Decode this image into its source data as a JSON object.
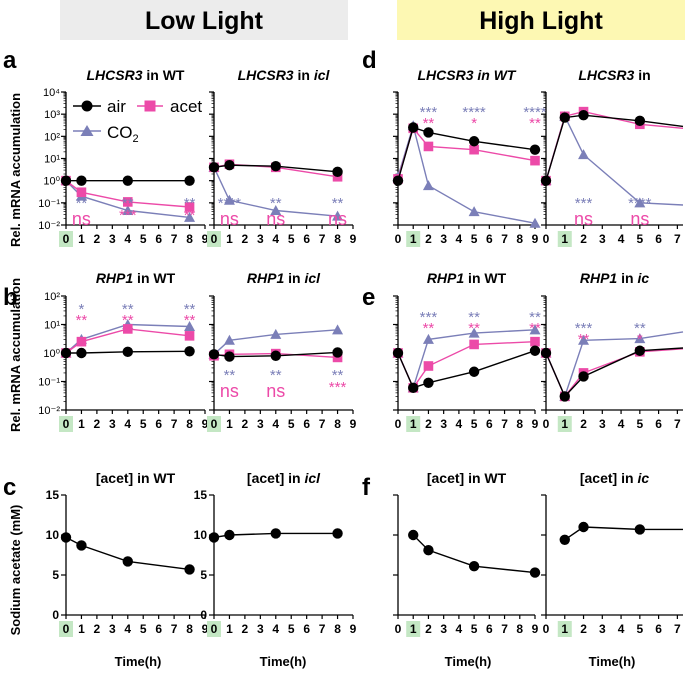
{
  "headers": {
    "low": "Low Light",
    "high": "High Light"
  },
  "colors": {
    "air": "#000000",
    "acet": "#ec4aa8",
    "co2": "#7b7fb8",
    "low_banner": "#ececec",
    "high_banner": "#fdf8b3",
    "highlight": "#c4e7c4"
  },
  "panel_letters": [
    "a",
    "b",
    "c",
    "d",
    "e",
    "f"
  ],
  "ylabels": {
    "mrna": "Rel. mRNA accumulation",
    "acet": "Sodium acetate (mM)"
  },
  "xlabel": "Time(h)",
  "legend": {
    "air": "air",
    "acet": "acet",
    "co2_main": "CO",
    "co2_sub": "2"
  },
  "chart_data": [
    {
      "id": "a1",
      "type": "line",
      "title_gene": "LHCSR3",
      "title_rest": " in WT",
      "yscale": "log",
      "ylim": [
        0.01,
        10000
      ],
      "ytick_labels": [
        "10⁻²",
        "10⁻¹",
        "10⁰",
        "10¹",
        "10²",
        "10³",
        "10⁴"
      ],
      "xlim": [
        0,
        9
      ],
      "xticks": [
        0,
        1,
        2,
        3,
        4,
        5,
        6,
        7,
        8,
        9
      ],
      "highlight_x": 0,
      "series": [
        {
          "name": "air",
          "x": [
            0,
            1,
            4,
            8
          ],
          "y": [
            1.0,
            1.0,
            1.0,
            1.0
          ]
        },
        {
          "name": "acet",
          "x": [
            0,
            1,
            4,
            8
          ],
          "y": [
            1.0,
            0.3,
            0.11,
            0.065
          ]
        },
        {
          "name": "CO2",
          "x": [
            0,
            1,
            4,
            8
          ],
          "y": [
            1.0,
            0.2,
            0.045,
            0.022
          ]
        }
      ],
      "annotations": [
        {
          "x": 1,
          "co2": "**",
          "acet": "ns"
        },
        {
          "x": 4,
          "co2": "**",
          "acet": "***"
        },
        {
          "x": 8,
          "co2": "**",
          "acet": "**"
        }
      ]
    },
    {
      "id": "a2",
      "type": "line",
      "title_gene": "LHCSR3",
      "title_rest": " in ",
      "title_ital": "icl",
      "yscale": "log",
      "ylim": [
        0.01,
        10000
      ],
      "xlim": [
        0,
        9
      ],
      "xticks": [
        0,
        1,
        2,
        3,
        4,
        5,
        6,
        7,
        8,
        9
      ],
      "highlight_x": 0,
      "series": [
        {
          "name": "air",
          "x": [
            0,
            1,
            4,
            8
          ],
          "y": [
            4.0,
            5.0,
            4.5,
            2.5
          ]
        },
        {
          "name": "acet",
          "x": [
            0,
            1,
            4,
            8
          ],
          "y": [
            4.0,
            5.5,
            4.0,
            1.5
          ]
        },
        {
          "name": "CO2",
          "x": [
            0,
            1,
            4,
            8
          ],
          "y": [
            4.0,
            0.13,
            0.045,
            0.025
          ]
        }
      ],
      "annotations": [
        {
          "x": 1,
          "co2": "****",
          "acet": "ns"
        },
        {
          "x": 4,
          "co2": "**",
          "acet": "ns"
        },
        {
          "x": 8,
          "co2": "**",
          "acet": "ns"
        }
      ]
    },
    {
      "id": "d1",
      "type": "line",
      "title_gene": "LHCSR3",
      "title_rest": " in WT",
      "title_all_italic": true,
      "yscale": "log",
      "ylim": [
        0.01,
        10000
      ],
      "xlim": [
        0,
        9
      ],
      "xticks": [
        0,
        1,
        2,
        3,
        4,
        5,
        6,
        7,
        8,
        9
      ],
      "highlight_x": 1,
      "series": [
        {
          "name": "air",
          "x": [
            0,
            1,
            2,
            5,
            9
          ],
          "y": [
            1.0,
            250,
            150,
            60,
            25
          ]
        },
        {
          "name": "acet",
          "x": [
            0,
            1,
            2,
            5,
            9
          ],
          "y": [
            1.2,
            230,
            35,
            25,
            8
          ]
        },
        {
          "name": "CO2",
          "x": [
            0,
            1,
            2,
            5,
            9
          ],
          "y": [
            1.5,
            300,
            0.6,
            0.04,
            0.012
          ]
        }
      ],
      "annotations": [
        {
          "x": 2,
          "co2": "***",
          "acet": "**"
        },
        {
          "x": 5,
          "co2": "****",
          "acet": "*"
        },
        {
          "x": 9,
          "co2": "****",
          "acet": "**"
        }
      ]
    },
    {
      "id": "d2",
      "type": "line",
      "title_gene": "LHCSR3",
      "title_rest": " in",
      "yscale": "log",
      "ylim": [
        0.01,
        10000
      ],
      "xlim": [
        0,
        7.3
      ],
      "xticks": [
        0,
        1,
        2,
        3,
        4,
        5,
        6,
        7
      ],
      "highlight_x": 1,
      "series": [
        {
          "name": "air",
          "x": [
            0,
            1,
            2,
            5,
            7.3
          ],
          "y": [
            1.0,
            700,
            900,
            500,
            280
          ]
        },
        {
          "name": "acet",
          "x": [
            0,
            1,
            2,
            5,
            7.3
          ],
          "y": [
            1.0,
            800,
            1300,
            350,
            230
          ]
        },
        {
          "name": "CO2",
          "x": [
            0,
            1,
            2,
            5,
            7.3
          ],
          "y": [
            1.0,
            800,
            15,
            0.1,
            0.08
          ]
        }
      ],
      "annotations": [
        {
          "x": 2,
          "co2": "***",
          "acet": "ns"
        },
        {
          "x": 5,
          "co2": "****",
          "acet": "ns"
        }
      ]
    },
    {
      "id": "b1",
      "type": "line",
      "title_gene": "RHP1",
      "title_rest": " in  WT",
      "yscale": "log",
      "ylim": [
        0.01,
        100
      ],
      "ytick_labels": [
        "10⁻²",
        "10⁻¹",
        "10⁰",
        "10¹",
        "10²"
      ],
      "xlim": [
        0,
        9
      ],
      "xticks": [
        0,
        1,
        2,
        3,
        4,
        5,
        6,
        7,
        8,
        9
      ],
      "highlight_x": 0,
      "series": [
        {
          "name": "air",
          "x": [
            0,
            1,
            4,
            8
          ],
          "y": [
            1.0,
            1.0,
            1.1,
            1.15
          ]
        },
        {
          "name": "acet",
          "x": [
            0,
            1,
            4,
            8
          ],
          "y": [
            1.0,
            2.5,
            7.0,
            4.0
          ]
        },
        {
          "name": "CO2",
          "x": [
            0,
            1,
            4,
            8
          ],
          "y": [
            1.0,
            3.0,
            10.0,
            8.5
          ]
        }
      ],
      "annotations_above": [
        {
          "x": 1,
          "co2": "*",
          "acet": "**"
        },
        {
          "x": 4,
          "co2": "**",
          "acet": "**"
        },
        {
          "x": 8,
          "co2": "**",
          "acet": "**"
        }
      ]
    },
    {
      "id": "b2",
      "type": "line",
      "title_gene": "RHP1",
      "title_rest": " in ",
      "title_ital": "icl",
      "yscale": "log",
      "ylim": [
        0.01,
        100
      ],
      "xlim": [
        0,
        9
      ],
      "xticks": [
        0,
        1,
        2,
        3,
        4,
        5,
        6,
        7,
        8,
        9
      ],
      "highlight_x": 0,
      "series": [
        {
          "name": "air",
          "x": [
            0,
            1,
            4,
            8
          ],
          "y": [
            0.9,
            0.75,
            0.8,
            1.05
          ]
        },
        {
          "name": "acet",
          "x": [
            0,
            1,
            4,
            8
          ],
          "y": [
            0.8,
            0.9,
            0.95,
            0.7
          ]
        },
        {
          "name": "CO2",
          "x": [
            0,
            1,
            4,
            8
          ],
          "y": [
            0.9,
            2.8,
            4.5,
            6.5
          ]
        }
      ],
      "annotations": [
        {
          "x": 1,
          "co2": "**",
          "acet": "ns"
        },
        {
          "x": 4,
          "co2": "**",
          "acet": "ns"
        },
        {
          "x": 8,
          "co2": "**",
          "acet": "***"
        }
      ]
    },
    {
      "id": "e1",
      "type": "line",
      "title_gene": "RHP1",
      "title_rest": " in WT",
      "yscale": "log",
      "ylim": [
        0.01,
        100
      ],
      "xlim": [
        0,
        9
      ],
      "xticks": [
        0,
        1,
        2,
        3,
        4,
        5,
        6,
        7,
        8,
        9
      ],
      "highlight_x": 1,
      "series": [
        {
          "name": "air",
          "x": [
            0,
            1,
            2,
            5,
            9
          ],
          "y": [
            1.0,
            0.06,
            0.09,
            0.22,
            1.2
          ]
        },
        {
          "name": "acet",
          "x": [
            0,
            1,
            2,
            5,
            9
          ],
          "y": [
            1.0,
            0.06,
            0.35,
            2.0,
            2.5
          ]
        },
        {
          "name": "CO2",
          "x": [
            0,
            1,
            2,
            5,
            9
          ],
          "y": [
            1.0,
            0.06,
            3.0,
            5.0,
            6.5
          ]
        }
      ],
      "annotations_above": [
        {
          "x": 2,
          "co2": "***",
          "acet": "**"
        },
        {
          "x": 5,
          "co2": "**",
          "acet": "**"
        },
        {
          "x": 9,
          "co2": "**",
          "acet": "**"
        }
      ]
    },
    {
      "id": "e2",
      "type": "line",
      "title_gene": "RHP1",
      "title_rest": " in ",
      "title_ital": "ic",
      "yscale": "log",
      "ylim": [
        0.01,
        100
      ],
      "xlim": [
        0,
        7.3
      ],
      "xticks": [
        0,
        1,
        2,
        3,
        4,
        5,
        6,
        7
      ],
      "highlight_x": 1,
      "series": [
        {
          "name": "air",
          "x": [
            0,
            1,
            2,
            5,
            7.3
          ],
          "y": [
            1.0,
            0.03,
            0.15,
            1.2,
            1.5
          ]
        },
        {
          "name": "acet",
          "x": [
            0,
            1,
            2,
            5,
            7.3
          ],
          "y": [
            1.0,
            0.03,
            0.2,
            1.1,
            1.4
          ]
        },
        {
          "name": "CO2",
          "x": [
            0,
            1,
            2,
            5,
            7.3
          ],
          "y": [
            1.0,
            0.03,
            2.8,
            3.2,
            5.5
          ]
        }
      ],
      "annotations_above": [
        {
          "x": 2,
          "co2": "***",
          "acet": "**"
        },
        {
          "x": 5,
          "co2": "**",
          "acet": "*"
        }
      ]
    },
    {
      "id": "c1",
      "type": "line",
      "title_gene": "",
      "title_rest": "[acet] in WT",
      "yscale": "linear",
      "ylim": [
        0,
        15
      ],
      "yticks": [
        0,
        5,
        10,
        15
      ],
      "xlim": [
        0,
        9
      ],
      "xticks": [
        0,
        1,
        2,
        3,
        4,
        5,
        6,
        7,
        8,
        9
      ],
      "highlight_x": 0,
      "series": [
        {
          "name": "air",
          "x": [
            0,
            1,
            4,
            8
          ],
          "y": [
            9.7,
            8.7,
            6.7,
            5.7
          ]
        }
      ]
    },
    {
      "id": "c2",
      "type": "line",
      "title_gene": "",
      "title_rest": "[acet] in ",
      "title_ital": "icl",
      "yscale": "linear",
      "ylim": [
        0,
        15
      ],
      "yticks": [
        0,
        5,
        10,
        15
      ],
      "xlim": [
        0,
        9
      ],
      "xticks": [
        0,
        1,
        2,
        3,
        4,
        5,
        6,
        7,
        8,
        9
      ],
      "highlight_x": 0,
      "series": [
        {
          "name": "air",
          "x": [
            0,
            1,
            4,
            8
          ],
          "y": [
            9.7,
            10.0,
            10.2,
            10.2
          ]
        }
      ]
    },
    {
      "id": "f1",
      "type": "line",
      "title_gene": "",
      "title_rest": "[acet] in WT",
      "yscale": "linear",
      "ylim": [
        0,
        15
      ],
      "xlim": [
        0,
        9
      ],
      "xticks": [
        0,
        1,
        2,
        3,
        4,
        5,
        6,
        7,
        8,
        9
      ],
      "highlight_x": 1,
      "series": [
        {
          "name": "air",
          "x": [
            1,
            2,
            5,
            9
          ],
          "y": [
            10.0,
            8.1,
            6.1,
            5.3
          ]
        }
      ]
    },
    {
      "id": "f2",
      "type": "line",
      "title_gene": "",
      "title_rest": "[acet] in ",
      "title_ital": "ic",
      "yscale": "linear",
      "ylim": [
        0,
        15
      ],
      "xlim": [
        0,
        7.3
      ],
      "xticks": [
        0,
        1,
        2,
        3,
        4,
        5,
        6,
        7
      ],
      "highlight_x": 1,
      "series": [
        {
          "name": "air",
          "x": [
            1,
            2,
            5,
            7.3
          ],
          "y": [
            9.4,
            11.0,
            10.7,
            10.7
          ]
        }
      ]
    }
  ]
}
